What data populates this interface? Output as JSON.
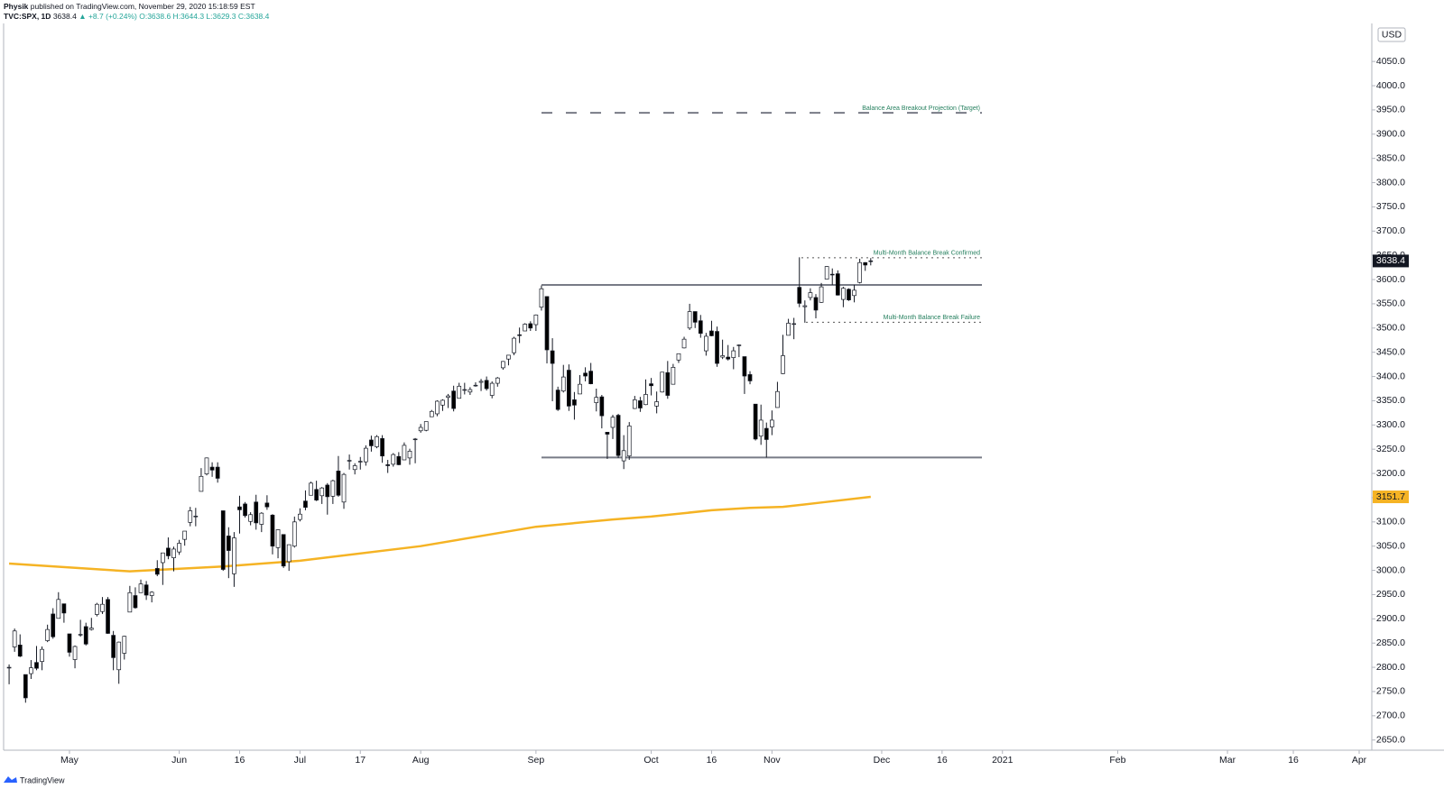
{
  "header": {
    "author": "Physik",
    "published": "published on TradingView.com, November 29, 2020 15:18:59 EST",
    "symbol": "TVC:SPX, 1D",
    "last": "3638.4",
    "change": "▲ +8.7 (+0.24%)",
    "ohlc": "O:3638.6 H:3644.3 L:3629.3 C:3638.4"
  },
  "chart_data": {
    "type": "candlestick",
    "currency": "USD",
    "up_color": "#ffffff",
    "down_color": "#000000",
    "border_color": "#131722",
    "ohlc": [
      [
        2799,
        2806,
        2765,
        2800
      ],
      [
        2842,
        2880,
        2832,
        2875
      ],
      [
        2846,
        2868,
        2821,
        2823
      ],
      [
        2785,
        2785,
        2727,
        2737
      ],
      [
        2787,
        2815,
        2776,
        2799
      ],
      [
        2810,
        2844,
        2794,
        2798
      ],
      [
        2812,
        2843,
        2794,
        2837
      ],
      [
        2855,
        2888,
        2852,
        2878
      ],
      [
        2910,
        2922,
        2859,
        2863
      ],
      [
        2901,
        2955,
        2901,
        2940
      ],
      [
        2931,
        2931,
        2892,
        2912
      ],
      [
        2869,
        2869,
        2822,
        2831
      ],
      [
        2816,
        2845,
        2798,
        2843
      ],
      [
        2868,
        2898,
        2863,
        2868
      ],
      [
        2884,
        2892,
        2845,
        2848
      ],
      [
        2878,
        2902,
        2876,
        2881
      ],
      [
        2909,
        2933,
        2905,
        2930
      ],
      [
        2915,
        2945,
        2910,
        2930
      ],
      [
        2940,
        2945,
        2869,
        2870
      ],
      [
        2866,
        2875,
        2794,
        2820
      ],
      [
        2795,
        2853,
        2766,
        2852
      ],
      [
        2829,
        2865,
        2816,
        2864
      ],
      [
        2914,
        2968,
        2914,
        2954
      ],
      [
        2948,
        2965,
        2921,
        2923
      ],
      [
        2954,
        2981,
        2954,
        2972
      ],
      [
        2970,
        2978,
        2939,
        2949
      ],
      [
        2948,
        2957,
        2934,
        2955
      ],
      [
        3004,
        3021,
        2988,
        2992
      ],
      [
        3016,
        3036,
        2970,
        3036
      ],
      [
        3046,
        3068,
        3023,
        3030
      ],
      [
        3026,
        3049,
        2998,
        3044
      ],
      [
        3038,
        3063,
        3032,
        3056
      ],
      [
        3064,
        3081,
        3051,
        3081
      ],
      [
        3099,
        3131,
        3091,
        3123
      ],
      [
        3112,
        3129,
        3091,
        3112
      ],
      [
        3163,
        3211,
        3163,
        3194
      ],
      [
        3199,
        3233,
        3196,
        3232
      ],
      [
        3213,
        3223,
        3193,
        3207
      ],
      [
        3213,
        3223,
        3181,
        3190
      ],
      [
        3123,
        3123,
        2999,
        3002
      ],
      [
        3071,
        3089,
        2984,
        3041
      ],
      [
        2993,
        3079,
        2966,
        3067
      ],
      [
        3131,
        3154,
        3076,
        3125
      ],
      [
        3137,
        3141,
        3109,
        3113
      ],
      [
        3101,
        3120,
        3093,
        3115
      ],
      [
        3141,
        3156,
        3084,
        3098
      ],
      [
        3095,
        3120,
        3079,
        3118
      ],
      [
        3139,
        3155,
        3125,
        3131
      ],
      [
        3114,
        3116,
        3033,
        3050
      ],
      [
        3047,
        3085,
        3025,
        3084
      ],
      [
        3074,
        3074,
        3005,
        3009
      ],
      [
        3018,
        3053,
        2999,
        3053
      ],
      [
        3050,
        3111,
        3047,
        3100
      ],
      [
        3105,
        3128,
        3101,
        3116
      ],
      [
        3143,
        3165,
        3124,
        3130
      ],
      [
        3155,
        3183,
        3155,
        3180
      ],
      [
        3167,
        3185,
        3143,
        3145
      ],
      [
        3154,
        3172,
        3137,
        3170
      ],
      [
        3176,
        3180,
        3115,
        3152
      ],
      [
        3153,
        3187,
        3137,
        3185
      ],
      [
        3205,
        3236,
        3152,
        3155
      ],
      [
        3141,
        3201,
        3127,
        3198
      ],
      [
        3226,
        3239,
        3208,
        3227
      ],
      [
        3208,
        3221,
        3198,
        3216
      ],
      [
        3225,
        3234,
        3208,
        3225
      ],
      [
        3224,
        3258,
        3216,
        3252
      ],
      [
        3269,
        3278,
        3245,
        3257
      ],
      [
        3255,
        3279,
        3252,
        3276
      ],
      [
        3272,
        3279,
        3222,
        3236
      ],
      [
        3218,
        3228,
        3201,
        3216
      ],
      [
        3219,
        3242,
        3214,
        3239
      ],
      [
        3235,
        3244,
        3217,
        3218
      ],
      [
        3228,
        3264,
        3228,
        3258
      ],
      [
        3232,
        3251,
        3218,
        3246
      ],
      [
        3270,
        3273,
        3221,
        3271
      ],
      [
        3288,
        3302,
        3284,
        3295
      ],
      [
        3289,
        3306,
        3287,
        3307
      ],
      [
        3317,
        3331,
        3317,
        3328
      ],
      [
        3323,
        3351,
        3318,
        3349
      ],
      [
        3341,
        3353,
        3329,
        3351
      ],
      [
        3357,
        3364,
        3335,
        3360
      ],
      [
        3370,
        3381,
        3328,
        3334
      ],
      [
        3355,
        3387,
        3355,
        3380
      ],
      [
        3373,
        3387,
        3363,
        3373
      ],
      [
        3368,
        3378,
        3362,
        3373
      ],
      [
        3381,
        3388,
        3379,
        3382
      ],
      [
        3388,
        3395,
        3370,
        3390
      ],
      [
        3392,
        3400,
        3371,
        3375
      ],
      [
        3361,
        3390,
        3355,
        3386
      ],
      [
        3386,
        3399,
        3379,
        3397
      ],
      [
        3418,
        3432,
        3414,
        3431
      ],
      [
        3436,
        3444,
        3423,
        3444
      ],
      [
        3449,
        3482,
        3444,
        3479
      ],
      [
        3486,
        3501,
        3469,
        3485
      ],
      [
        3494,
        3510,
        3495,
        3508
      ],
      [
        3509,
        3514,
        3494,
        3500
      ],
      [
        3507,
        3528,
        3494,
        3527
      ],
      [
        3543,
        3588,
        3536,
        3581
      ],
      [
        3565,
        3565,
        3427,
        3455
      ],
      [
        3453,
        3479,
        3349,
        3427
      ],
      [
        3372,
        3379,
        3329,
        3332
      ],
      [
        3370,
        3424,
        3367,
        3399
      ],
      [
        3413,
        3425,
        3329,
        3339
      ],
      [
        3352,
        3368,
        3311,
        3341
      ],
      [
        3364,
        3403,
        3364,
        3384
      ],
      [
        3407,
        3419,
        3390,
        3401
      ],
      [
        3411,
        3428,
        3384,
        3385
      ],
      [
        3346,
        3375,
        3328,
        3357
      ],
      [
        3358,
        3362,
        3293,
        3319
      ],
      [
        3285,
        3285,
        3230,
        3281
      ],
      [
        3295,
        3321,
        3271,
        3316
      ],
      [
        3320,
        3323,
        3232,
        3237
      ],
      [
        3226,
        3279,
        3209,
        3247
      ],
      [
        3236,
        3306,
        3228,
        3298
      ],
      [
        3334,
        3360,
        3333,
        3352
      ],
      [
        3350,
        3358,
        3327,
        3335
      ],
      [
        3342,
        3394,
        3341,
        3363
      ],
      [
        3385,
        3397,
        3361,
        3381
      ],
      [
        3339,
        3369,
        3324,
        3348
      ],
      [
        3368,
        3409,
        3367,
        3409
      ],
      [
        3408,
        3432,
        3354,
        3361
      ],
      [
        3384,
        3426,
        3384,
        3419
      ],
      [
        3434,
        3447,
        3428,
        3447
      ],
      [
        3459,
        3482,
        3458,
        3477
      ],
      [
        3500,
        3550,
        3496,
        3534
      ],
      [
        3534,
        3534,
        3500,
        3512
      ],
      [
        3515,
        3527,
        3480,
        3489
      ],
      [
        3453,
        3490,
        3443,
        3483
      ],
      [
        3494,
        3515,
        3483,
        3484
      ],
      [
        3493,
        3503,
        3420,
        3427
      ],
      [
        3440,
        3476,
        3436,
        3443
      ],
      [
        3440,
        3465,
        3433,
        3436
      ],
      [
        3439,
        3461,
        3415,
        3453
      ],
      [
        3464,
        3466,
        3440,
        3465
      ],
      [
        3441,
        3441,
        3364,
        3401
      ],
      [
        3404,
        3411,
        3384,
        3391
      ],
      [
        3343,
        3343,
        3268,
        3271
      ],
      [
        3277,
        3342,
        3259,
        3310
      ],
      [
        3293,
        3305,
        3233,
        3270
      ],
      [
        3296,
        3330,
        3279,
        3310
      ],
      [
        3336,
        3389,
        3336,
        3369
      ],
      [
        3406,
        3486,
        3405,
        3443
      ],
      [
        3485,
        3519,
        3485,
        3510
      ],
      [
        3508,
        3521,
        3477,
        3509
      ],
      [
        3584,
        3646,
        3543,
        3551
      ],
      [
        3544,
        3557,
        3511,
        3546
      ],
      [
        3563,
        3582,
        3557,
        3573
      ],
      [
        3563,
        3570,
        3520,
        3537
      ],
      [
        3553,
        3593,
        3552,
        3585
      ],
      [
        3601,
        3628,
        3601,
        3627
      ],
      [
        3611,
        3623,
        3589,
        3610
      ],
      [
        3612,
        3619,
        3567,
        3568
      ],
      [
        3559,
        3585,
        3543,
        3582
      ],
      [
        3580,
        3582,
        3556,
        3558
      ],
      [
        3567,
        3589,
        3553,
        3578
      ],
      [
        3594,
        3643,
        3592,
        3635
      ],
      [
        3635,
        3636,
        3618,
        3630
      ],
      [
        3638.6,
        3644.3,
        3629.3,
        3638.4
      ]
    ],
    "moving_average": {
      "color": "#f5b324",
      "x": [
        0,
        22,
        39,
        53,
        75,
        96,
        110,
        117,
        128,
        135,
        141,
        148,
        157
      ],
      "values": [
        3014,
        2998,
        3008,
        3020,
        3050,
        3090,
        3105,
        3111,
        3124,
        3129,
        3131,
        3140,
        3151.7
      ]
    },
    "levels": [
      {
        "value": 3589
      },
      {
        "value": 3233
      },
      {
        "value": 3944,
        "label": "Balance Area Breakout Projection (Target)"
      },
      {
        "value": 3645,
        "label": "Multi-Month Balance Break Confirmed"
      },
      {
        "value": 3512,
        "label": "Multi-Month Balance Break Failure"
      }
    ],
    "xlim": [
      -1,
      248.3
    ],
    "xticks": [
      {
        "value": 11,
        "label": "May"
      },
      {
        "value": 31,
        "label": "Jun"
      },
      {
        "value": 42,
        "label": "16"
      },
      {
        "value": 53,
        "label": "Jul"
      },
      {
        "value": 64,
        "label": "17"
      },
      {
        "value": 75,
        "label": "Aug"
      },
      {
        "value": 96,
        "label": "Sep"
      },
      {
        "value": 117,
        "label": "Oct"
      },
      {
        "value": 128,
        "label": "16"
      },
      {
        "value": 139,
        "label": "Nov"
      },
      {
        "value": 159,
        "label": "Dec"
      },
      {
        "value": 170,
        "label": "16"
      },
      {
        "value": 181,
        "label": "2021"
      },
      {
        "value": 202,
        "label": "Feb"
      },
      {
        "value": 222,
        "label": "Mar"
      },
      {
        "value": 234,
        "label": "16"
      },
      {
        "value": 246,
        "label": "Apr"
      }
    ],
    "ylim": [
      2629,
      4121
    ],
    "yticks": [
      {
        "value": 2650,
        "label": "2650.0"
      },
      {
        "value": 2700,
        "label": "2700.0"
      },
      {
        "value": 2750,
        "label": "2750.0"
      },
      {
        "value": 2800,
        "label": "2800.0"
      },
      {
        "value": 2850,
        "label": "2850.0"
      },
      {
        "value": 2900,
        "label": "2900.0"
      },
      {
        "value": 2950,
        "label": "2950.0"
      },
      {
        "value": 3000,
        "label": "3000.0"
      },
      {
        "value": 3050,
        "label": "3050.0"
      },
      {
        "value": 3100,
        "label": "3100.0"
      },
      {
        "value": 3150,
        "label": "3150.0"
      },
      {
        "value": 3200,
        "label": "3200.0"
      },
      {
        "value": 3250,
        "label": "3250.0"
      },
      {
        "value": 3300,
        "label": "3300.0"
      },
      {
        "value": 3350,
        "label": "3350.0"
      },
      {
        "value": 3400,
        "label": "3400.0"
      },
      {
        "value": 3450,
        "label": "3450.0"
      },
      {
        "value": 3500,
        "label": "3500.0"
      },
      {
        "value": 3550,
        "label": "3550.0"
      },
      {
        "value": 3600,
        "label": "3600.0"
      },
      {
        "value": 3650,
        "label": "3650.0"
      },
      {
        "value": 3700,
        "label": "3700.0"
      },
      {
        "value": 3750,
        "label": "3750.0"
      },
      {
        "value": 3800,
        "label": "3800.0"
      },
      {
        "value": 3850,
        "label": "3850.0"
      },
      {
        "value": 3900,
        "label": "3900.0"
      },
      {
        "value": 3950,
        "label": "3950.0"
      },
      {
        "value": 4000,
        "label": "4000.0"
      },
      {
        "value": 4050,
        "label": "4050.0"
      }
    ],
    "grid": false
  },
  "footer": {
    "brand": "TradingView"
  }
}
